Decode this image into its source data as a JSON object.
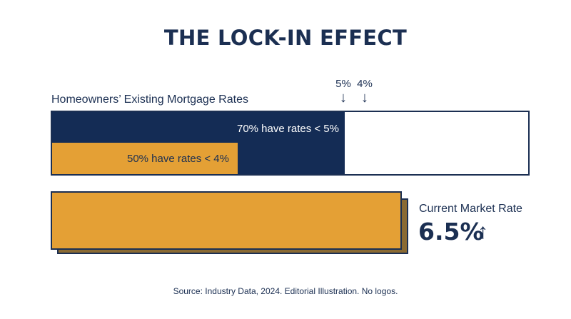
{
  "chart_data": {
    "type": "bar",
    "title": "THE LOCK-IN EFFECT",
    "subtitle": "Homeowners’ Existing Mortgage Rates",
    "categories": [
      "Existing mortgage rates < 5%",
      "Existing mortgage rates < 4%"
    ],
    "values": [
      70,
      50
    ],
    "unit": "%",
    "xlim": [
      0,
      100
    ],
    "bars": [
      {
        "value": 70,
        "label": "70% have rates < 5%",
        "color": "#142c55"
      },
      {
        "value": 50,
        "label": "50% have rates < 4%",
        "color": "#e4a035"
      }
    ],
    "markers": [
      {
        "label": "5%",
        "arrow": "↓"
      },
      {
        "label": "4%",
        "arrow": "↓"
      }
    ],
    "current_rate": {
      "label": "Current Market Rate",
      "value": "6.5%",
      "arrow": "↑",
      "color": "#e4a035"
    },
    "source": "Source: Industry Data, 2024. Editorial Illustration. No logos."
  }
}
